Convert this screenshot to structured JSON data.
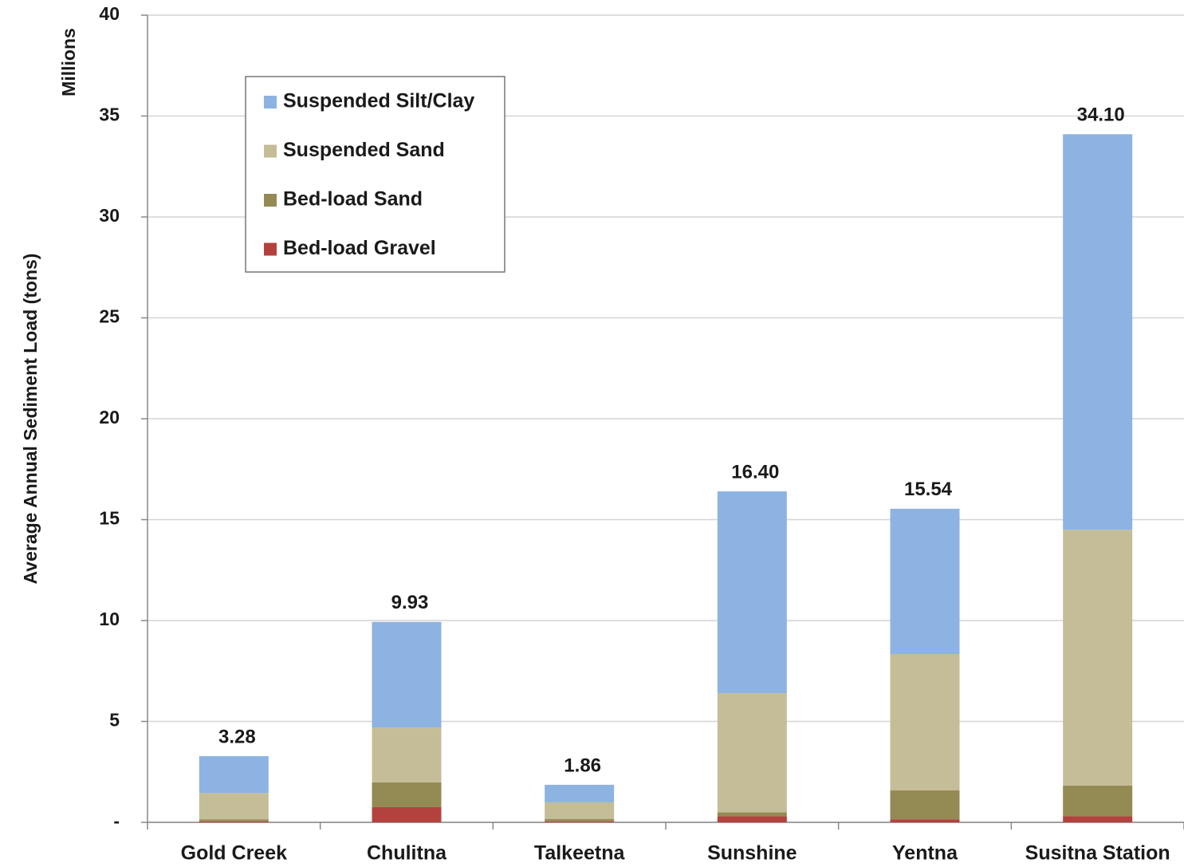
{
  "chart_data": {
    "type": "stacked_bar",
    "y_axis_label": "Average Annual Sediment Load (tons)",
    "y_unit_label": "Millions",
    "categories": [
      "Gold Creek",
      "Chulitna",
      "Talkeetna",
      "Sunshine",
      "Yentna",
      "Susitna Station"
    ],
    "series": [
      {
        "name": "Suspended Silt/Clay",
        "color": "#8db3e2",
        "values": [
          1.83,
          5.23,
          0.87,
          10.0,
          7.2,
          19.6
        ]
      },
      {
        "name": "Suspended Sand",
        "color": "#c4bd97",
        "values": [
          1.3,
          2.72,
          0.82,
          5.9,
          6.76,
          12.68
        ]
      },
      {
        "name": "Bed-load Sand",
        "color": "#948a54",
        "values": [
          0.1,
          1.23,
          0.12,
          0.2,
          1.43,
          1.52
        ]
      },
      {
        "name": "Bed-load Gravel",
        "color": "#b3413e",
        "values": [
          0.05,
          0.75,
          0.05,
          0.3,
          0.15,
          0.3
        ]
      }
    ],
    "totals": [
      3.28,
      9.93,
      1.86,
      16.4,
      15.54,
      34.1
    ],
    "total_labels": [
      "3.28",
      "9.93",
      "1.86",
      "16.40",
      "15.54",
      "34.10"
    ],
    "ylim": [
      0,
      40
    ],
    "yticks": [
      {
        "value": 0,
        "label": "-"
      },
      5,
      10,
      15,
      20,
      25,
      30,
      35,
      40
    ],
    "grid": true,
    "legend": "upper-left"
  }
}
